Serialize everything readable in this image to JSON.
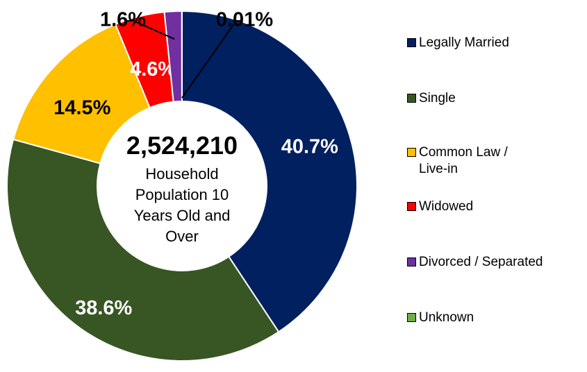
{
  "chart_data": {
    "type": "donut",
    "center_title": "2,524,210",
    "center_subtitle": "Household Population 10 Years Old and Over",
    "categories": [
      "Legally Married",
      "Single",
      "Common Law / Live-in",
      "Widowed",
      "Divorced / Separated",
      "Unknown"
    ],
    "values": [
      40.7,
      38.6,
      14.5,
      4.6,
      1.6,
      0.01
    ],
    "value_labels": [
      "40.7%",
      "38.6%",
      "14.5%",
      "4.6%",
      "1.6%",
      "0.01%"
    ],
    "colors": [
      "#002060",
      "#375623",
      "#FFC000",
      "#FF0000",
      "#7030A0",
      "#70AD47"
    ],
    "label_colors": [
      "#ffffff",
      "#ffffff",
      "#000000",
      "#ffffff",
      "#000000",
      "#000000"
    ],
    "legend": "right"
  }
}
